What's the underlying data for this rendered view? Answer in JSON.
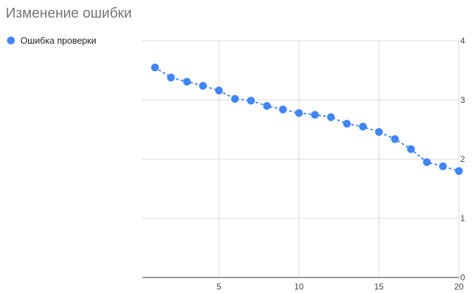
{
  "chart_data": {
    "type": "scatter",
    "title": "Изменение ошибки",
    "xlabel": "",
    "ylabel": "",
    "xlim": [
      0.2,
      20
    ],
    "ylim": [
      0,
      4
    ],
    "x_ticks": [
      5,
      10,
      15,
      20
    ],
    "y_ticks": [
      0,
      1,
      2,
      3,
      4
    ],
    "grid": true,
    "legend_position": "top-left",
    "trendline": "dotted",
    "series": [
      {
        "name": "Ошибка проверки",
        "color": "#4285F4",
        "x": [
          1,
          2,
          3,
          4,
          5,
          6,
          7,
          8,
          9,
          10,
          11,
          12,
          13,
          14,
          15,
          16,
          17,
          18,
          19,
          20
        ],
        "y": [
          3.55,
          3.38,
          3.31,
          3.24,
          3.16,
          3.02,
          2.99,
          2.9,
          2.84,
          2.78,
          2.75,
          2.71,
          2.6,
          2.55,
          2.46,
          2.34,
          2.17,
          1.95,
          1.88,
          1.8
        ]
      }
    ]
  }
}
